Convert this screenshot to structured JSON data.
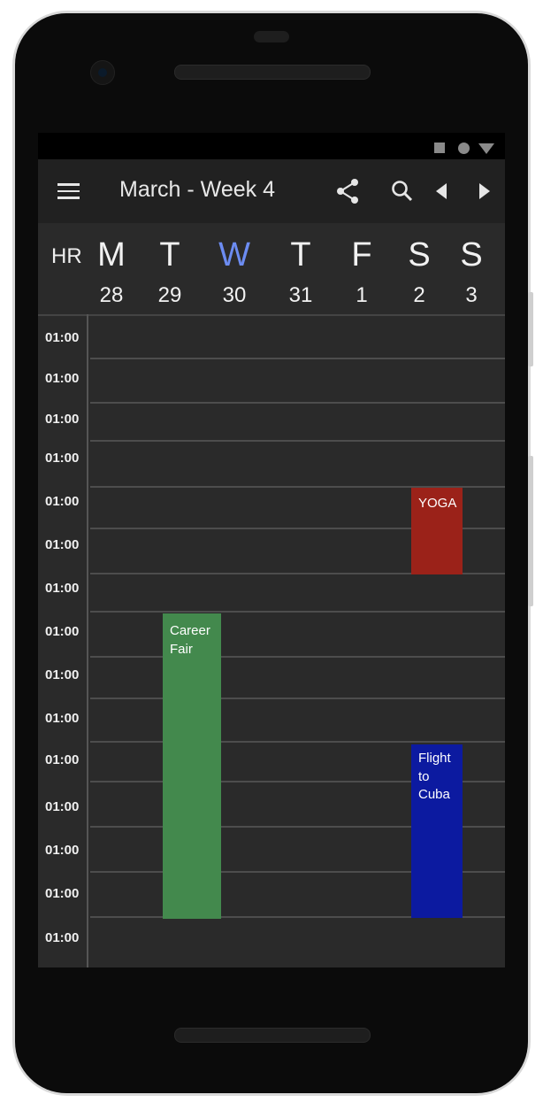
{
  "app_bar": {
    "title": "March - Week 4",
    "icons": [
      "menu-icon",
      "share-icon",
      "search-icon",
      "prev-week-icon",
      "next-week-icon"
    ]
  },
  "day_header": {
    "hr_label": "HR",
    "days": [
      {
        "letter": "M",
        "date": "28",
        "today": false
      },
      {
        "letter": "T",
        "date": "29",
        "today": false
      },
      {
        "letter": "W",
        "date": "30",
        "today": true
      },
      {
        "letter": "T",
        "date": "31",
        "today": false
      },
      {
        "letter": "F",
        "date": "1",
        "today": false
      },
      {
        "letter": "S",
        "date": "2",
        "today": false
      },
      {
        "letter": "S",
        "date": "3",
        "today": false
      }
    ]
  },
  "time_labels": [
    "01:00",
    "01:00",
    "01:00",
    "01:00",
    "01:00",
    "01:00",
    "01:00",
    "01:00",
    "01:00",
    "01:00",
    "01:00",
    "01:00",
    "01:00",
    "01:00",
    "01:00"
  ],
  "events": [
    {
      "title": "YOGA",
      "day": "S 2",
      "color": "#9b2219"
    },
    {
      "title": "Career Fair",
      "day": "T 29",
      "color": "#43894d"
    },
    {
      "title": "Flight to Cuba",
      "day": "S 2",
      "color": "#0c1aa0"
    }
  ],
  "colors": {
    "app_bar_bg": "#212121",
    "grid_bg": "#2a2a2a",
    "today_accent": "#6c8cf2"
  }
}
